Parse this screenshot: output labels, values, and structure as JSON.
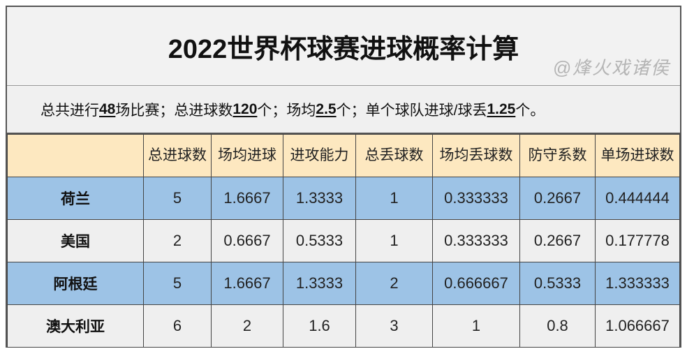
{
  "title": "2022世界杯球赛进球概率计算",
  "summary": {
    "p1": "总共进行",
    "matches": "48",
    "p2": "场比赛；总进球数",
    "goals": "120",
    "p3": "个；场均",
    "avg": "2.5",
    "p4": "个；单个球队进球/球丢",
    "team_avg": "1.25",
    "p5": "个。"
  },
  "columns": [
    "",
    "总进球数",
    "场均进球",
    "进攻能力",
    "总丢球数",
    "场均丢球数",
    "防守系数",
    "单场进球数"
  ],
  "rows": [
    [
      "荷兰",
      "5",
      "1.6667",
      "1.3333",
      "1",
      "0.333333",
      "0.2667",
      "0.444444"
    ],
    [
      "美国",
      "2",
      "0.6667",
      "0.5333",
      "1",
      "0.333333",
      "0.2667",
      "0.177778"
    ],
    [
      "阿根廷",
      "5",
      "1.6667",
      "1.3333",
      "2",
      "0.666667",
      "0.5333",
      "1.333333"
    ],
    [
      "澳大利亚",
      "6",
      "2",
      "1.6",
      "3",
      "1",
      "0.8",
      "1.066667"
    ]
  ],
  "watermark": "@烽火戏诸侯",
  "colors": {
    "header_bg": "#fde8c0",
    "blue_row": "#9dc3e6",
    "gray_row": "#efefef"
  }
}
